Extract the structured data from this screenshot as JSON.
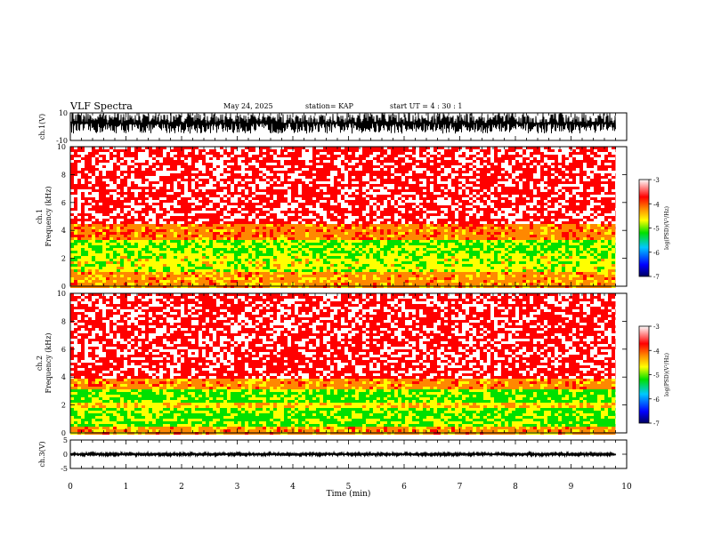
{
  "header": {
    "title": "VLF Spectra",
    "date": "May 24, 2025",
    "station": "station= KAP",
    "start_ut": "start  UT  =   4 : 30 : 1"
  },
  "chart_data": [
    {
      "type": "line",
      "panel": "ch1-waveform",
      "ylabel": "ch.1(V)",
      "ylim": [
        -10,
        10
      ],
      "tick_labels": [
        "-10",
        "10"
      ],
      "xlim": [
        0,
        10
      ],
      "data_extent_min": 9.8,
      "approx_amplitude": [
        -5,
        10
      ]
    },
    {
      "type": "heatmap",
      "panel": "ch1-spectrogram",
      "ylabel": "ch.1\nFrequency (kHz)",
      "ylim": [
        0,
        10
      ],
      "yticks": [
        "0",
        "2",
        "4",
        "6",
        "8",
        "10"
      ],
      "xlim": [
        0,
        10
      ],
      "data_extent_min": 9.8,
      "colorbar": {
        "label": "log(PSD)(V²/Hz)",
        "range": [
          -7,
          -3
        ],
        "ticks": [
          "-3",
          "-4",
          "-5",
          "-6",
          "-7"
        ]
      },
      "bands_khz": [
        {
          "from": 0,
          "to": 1.2,
          "level": -4.2
        },
        {
          "from": 1.2,
          "to": 2.2,
          "level": -4.8
        },
        {
          "from": 2.2,
          "to": 3.4,
          "level": -5.0
        },
        {
          "from": 3.4,
          "to": 4.5,
          "level": -4.1
        },
        {
          "from": 4.5,
          "to": 10,
          "level": -3.4
        }
      ]
    },
    {
      "type": "heatmap",
      "panel": "ch2-spectrogram",
      "ylabel": "ch.2\nFrequency (kHz)",
      "ylim": [
        0,
        10
      ],
      "yticks": [
        "0",
        "2",
        "4",
        "6",
        "8",
        "10"
      ],
      "xlim": [
        0,
        10
      ],
      "data_extent_min": 9.8,
      "colorbar": {
        "label": "log(PSD)(V²/Hz)",
        "range": [
          -7,
          -3
        ],
        "ticks": [
          "-3",
          "-4",
          "-5",
          "-6",
          "-7"
        ]
      },
      "bands_khz": [
        {
          "from": 0,
          "to": 0.6,
          "level": -4.2
        },
        {
          "from": 0.6,
          "to": 1.8,
          "level": -5.1
        },
        {
          "from": 1.8,
          "to": 2.2,
          "level": -4.5
        },
        {
          "from": 2.2,
          "to": 3.2,
          "level": -5.1
        },
        {
          "from": 3.2,
          "to": 4.0,
          "level": -4.2
        },
        {
          "from": 4.0,
          "to": 10,
          "level": -3.4
        }
      ]
    },
    {
      "type": "line",
      "panel": "ch3-waveform",
      "ylabel": "ch.3(V)",
      "ylim": [
        -5,
        5
      ],
      "tick_labels": [
        "-5",
        "0",
        "5"
      ],
      "xlim": [
        0,
        10
      ],
      "data_extent_min": 9.8,
      "approx_amplitude": [
        -0.5,
        0.5
      ],
      "xlabel": "Time (min)",
      "xticks": [
        "0",
        "1",
        "2",
        "3",
        "4",
        "5",
        "6",
        "7",
        "8",
        "9",
        "10"
      ]
    }
  ],
  "colors": {
    "waveform": "#000000",
    "colormap": [
      "#000060",
      "#0000ff",
      "#00c8ff",
      "#00e000",
      "#ffff00",
      "#ff8800",
      "#ff0000",
      "#ffffff"
    ]
  }
}
